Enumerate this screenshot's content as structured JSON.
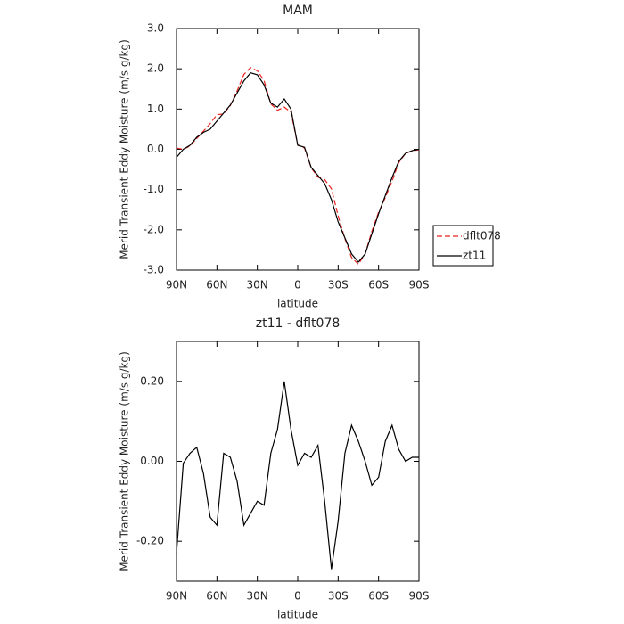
{
  "chart_data": [
    {
      "type": "line",
      "title": "MAM",
      "xlabel": "latitude",
      "ylabel": "Merid Transient Eddy Moisture (m/s g/kg)",
      "x": [
        90,
        85,
        80,
        75,
        70,
        65,
        60,
        55,
        50,
        45,
        40,
        35,
        30,
        25,
        20,
        15,
        10,
        5,
        0,
        -5,
        -10,
        -15,
        -20,
        -25,
        -30,
        -35,
        -40,
        -45,
        -50,
        -55,
        -60,
        -65,
        -70,
        -75,
        -80,
        -85,
        -90
      ],
      "xlim": [
        90,
        -90
      ],
      "xticks": [
        {
          "value": 90,
          "label": "90N"
        },
        {
          "value": 60,
          "label": "60N"
        },
        {
          "value": 30,
          "label": "30N"
        },
        0,
        {
          "value": -30,
          "label": "30S"
        },
        {
          "value": -60,
          "label": "60S"
        },
        {
          "value": -90,
          "label": "90S"
        }
      ],
      "ylim": [
        -3,
        3
      ],
      "yticks": [
        {
          "value": 3,
          "label": "3.0"
        },
        {
          "value": 2,
          "label": "2.0"
        },
        {
          "value": 1,
          "label": "1.0"
        },
        {
          "value": 0,
          "label": "0.0"
        },
        {
          "value": -1,
          "label": "-1.0"
        },
        {
          "value": -2,
          "label": "-2.0"
        },
        {
          "value": -3,
          "label": "-3.0"
        }
      ],
      "legend": "outside lower right",
      "series": [
        {
          "name": "dflt078",
          "color": "#e8231e",
          "linestyle": "dashed",
          "values": [
            0.03,
            0.0,
            0.08,
            0.27,
            0.45,
            0.64,
            0.86,
            0.88,
            1.09,
            1.45,
            1.86,
            2.03,
            1.95,
            1.71,
            1.13,
            0.97,
            1.05,
            0.92,
            0.11,
            0.03,
            -0.46,
            -0.69,
            -0.75,
            -0.98,
            -1.65,
            -2.22,
            -2.69,
            -2.85,
            -2.6,
            -2.04,
            -1.56,
            -1.2,
            -0.79,
            -0.33,
            -0.1,
            -0.04,
            -0.01
          ]
        },
        {
          "name": "zt11",
          "color": "#000000",
          "linestyle": "solid",
          "values": [
            -0.2,
            0.0,
            0.1,
            0.3,
            0.42,
            0.5,
            0.7,
            0.9,
            1.1,
            1.4,
            1.7,
            1.9,
            1.85,
            1.6,
            1.15,
            1.05,
            1.25,
            1.0,
            0.1,
            0.05,
            -0.45,
            -0.65,
            -0.85,
            -1.25,
            -1.8,
            -2.2,
            -2.6,
            -2.8,
            -2.6,
            -2.1,
            -1.6,
            -1.15,
            -0.7,
            -0.3,
            -0.1,
            -0.03,
            0.0
          ]
        }
      ]
    },
    {
      "type": "line",
      "title": "zt11 - dflt078",
      "xlabel": "latitude",
      "ylabel": "Merid Transient Eddy Moisture (m/s g/kg)",
      "x": [
        90,
        85,
        80,
        75,
        70,
        65,
        60,
        55,
        50,
        45,
        40,
        35,
        30,
        25,
        20,
        15,
        10,
        5,
        0,
        -5,
        -10,
        -15,
        -20,
        -25,
        -30,
        -35,
        -40,
        -45,
        -50,
        -55,
        -60,
        -65,
        -70,
        -75,
        -80,
        -85,
        -90
      ],
      "xlim": [
        90,
        -90
      ],
      "xticks": [
        {
          "value": 90,
          "label": "90N"
        },
        {
          "value": 60,
          "label": "60N"
        },
        {
          "value": 30,
          "label": "30N"
        },
        0,
        {
          "value": -30,
          "label": "30S"
        },
        {
          "value": -60,
          "label": "60S"
        },
        {
          "value": -90,
          "label": "90S"
        }
      ],
      "ylim": [
        -0.3,
        0.3
      ],
      "yticks": [
        {
          "value": 0.2,
          "label": "0.20"
        },
        {
          "value": 0,
          "label": "0.00"
        },
        {
          "value": -0.2,
          "label": "-0.20"
        }
      ],
      "series": [
        {
          "color": "#000000",
          "linestyle": "solid",
          "values": [
            -0.23,
            -0.005,
            0.02,
            0.035,
            -0.03,
            -0.14,
            -0.16,
            0.02,
            0.01,
            -0.05,
            -0.16,
            -0.13,
            -0.1,
            -0.11,
            0.02,
            0.08,
            0.2,
            0.08,
            -0.01,
            0.02,
            0.01,
            0.04,
            -0.1,
            -0.27,
            -0.15,
            0.02,
            0.09,
            0.05,
            0.0,
            -0.06,
            -0.04,
            0.05,
            0.09,
            0.03,
            0.0,
            0.01,
            0.01
          ]
        }
      ]
    }
  ]
}
